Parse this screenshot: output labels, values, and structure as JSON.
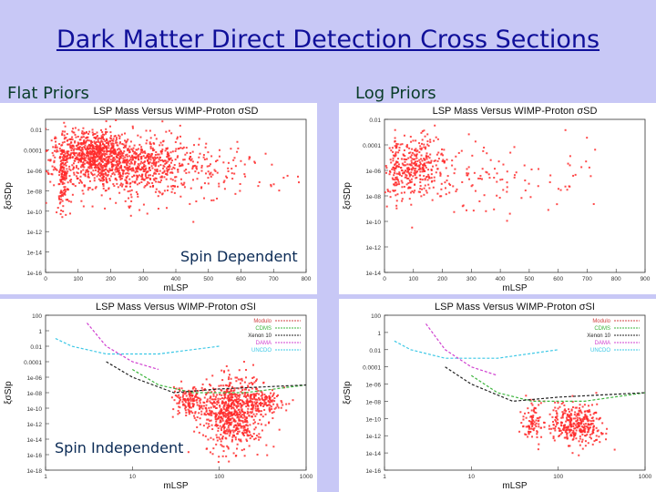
{
  "slide": {
    "title": "Dark Matter Direct Detection Cross Sections",
    "left_label": "Flat Priors",
    "right_label": "Log Priors",
    "sd_label": "Spin Dependent",
    "si_label": "Spin Independent"
  },
  "colors": {
    "points": "#ff2a2a",
    "title": "#10109a",
    "background": "#c8c8f6"
  },
  "chart_data": [
    {
      "id": "sd-flat",
      "type": "scatter",
      "title": "LSP Mass Versus WIMP-Proton σSD",
      "xlabel": "mLSP",
      "ylabel": "ξσSDp",
      "xscale": "linear",
      "yscale": "log",
      "xlim": [
        0,
        800
      ],
      "ylim": [
        1e-16,
        0.1
      ],
      "xticks": [
        "0",
        "100",
        "200",
        "300",
        "400",
        "500",
        "600",
        "700",
        "800"
      ],
      "yticks": [
        "1e-16",
        "1e-14",
        "1e-12",
        "1e-10",
        "1e-08",
        "1e-06",
        "0.0001",
        "0.01"
      ],
      "series": [
        {
          "color": "#ff2a2a",
          "clusters": [
            {
              "xc": 210,
              "xs": 110,
              "ylc": -5.2,
              "yls": 1.4,
              "n": 900
            },
            {
              "xc": 140,
              "xs": 50,
              "ylc": -4.0,
              "yls": 0.9,
              "n": 350
            },
            {
              "xc": 55,
              "xs": 8,
              "ylc": -6.5,
              "yls": 1.8,
              "n": 120
            },
            {
              "xc": 350,
              "xs": 160,
              "ylc": -6.0,
              "yls": 1.6,
              "n": 300
            }
          ]
        }
      ],
      "grid": false
    },
    {
      "id": "sd-log",
      "type": "scatter",
      "title": "LSP Mass Versus WIMP-Proton σSD",
      "xlabel": "mLSP",
      "ylabel": "ξσSDp",
      "xscale": "linear",
      "yscale": "log",
      "xlim": [
        0,
        900
      ],
      "ylim": [
        1e-14,
        0.01
      ],
      "xticks": [
        "0",
        "100",
        "200",
        "300",
        "400",
        "500",
        "600",
        "700",
        "800",
        "900"
      ],
      "yticks": [
        "1e-14",
        "1e-12",
        "1e-10",
        "1e-08",
        "1e-06",
        "0.0001",
        "0.01"
      ],
      "series": [
        {
          "color": "#ff2a2a",
          "clusters": [
            {
              "xc": 110,
              "xs": 50,
              "ylc": -5.8,
              "yls": 1.0,
              "n": 280
            },
            {
              "xc": 40,
              "xs": 8,
              "ylc": -5.5,
              "yls": 1.2,
              "n": 60
            },
            {
              "xc": 300,
              "xs": 200,
              "ylc": -6.5,
              "yls": 1.5,
              "n": 160
            }
          ]
        }
      ],
      "grid": false
    },
    {
      "id": "si-flat",
      "type": "scatter",
      "title": "LSP Mass Versus WIMP-Proton σSI",
      "xlabel": "mLSP",
      "ylabel": "ξσSIp",
      "xscale": "log",
      "yscale": "log",
      "xlim": [
        1,
        1000
      ],
      "ylim": [
        1e-18,
        100
      ],
      "xticks": [
        "1",
        "10",
        "100",
        "1000"
      ],
      "yticks": [
        "1e-18",
        "1e-16",
        "1e-14",
        "1e-12",
        "1e-10",
        "1e-08",
        "1e-06",
        "0.0001",
        "0.01",
        "1",
        "100"
      ],
      "legend": [
        "Modulo",
        "CDMS",
        "Xenon 10",
        "DAMA",
        "UNCDO"
      ],
      "legend_position": "top-right",
      "series": [
        {
          "color": "#ff2a2a",
          "clusters": [
            {
              "lxc": 2.15,
              "lxs": 0.18,
              "ylc": -10.5,
              "yls": 2.3,
              "n": 700
            },
            {
              "lxc": 1.65,
              "lxs": 0.09,
              "ylc": -9.0,
              "yls": 0.9,
              "n": 150
            },
            {
              "lxc": 2.5,
              "lxs": 0.12,
              "ylc": -9.2,
              "yls": 0.7,
              "n": 140
            }
          ]
        }
      ],
      "limit_curves": [
        {
          "name": "cyan",
          "color": "#3cc8e6",
          "points": [
            [
              1.3,
              0.1
            ],
            [
              2,
              0.01
            ],
            [
              5,
              0.001
            ],
            [
              20,
              0.001
            ],
            [
              100,
              0.01
            ]
          ]
        },
        {
          "name": "magenta",
          "color": "#d040d0",
          "points": [
            [
              3,
              10
            ],
            [
              5,
              0.01
            ],
            [
              10,
              0.0001
            ],
            [
              20,
              1e-05
            ]
          ]
        },
        {
          "name": "green",
          "color": "#3cb43c",
          "points": [
            [
              10,
              1e-05
            ],
            [
              20,
              1e-07
            ],
            [
              50,
              1e-08
            ],
            [
              200,
              1e-08
            ],
            [
              1000,
              1e-07
            ]
          ]
        },
        {
          "name": "black",
          "color": "#222222",
          "points": [
            [
              5,
              0.0001
            ],
            [
              10,
              1e-06
            ],
            [
              30,
              1e-08
            ],
            [
              100,
              3e-08
            ],
            [
              1000,
              1e-07
            ]
          ]
        }
      ],
      "grid": false
    },
    {
      "id": "si-log",
      "type": "scatter",
      "title": "LSP Mass Versus WIMP-Proton σSI",
      "xlabel": "mLSP",
      "ylabel": "ξσSIp",
      "xscale": "log",
      "yscale": "log",
      "xlim": [
        1,
        1000
      ],
      "ylim": [
        1e-16,
        100
      ],
      "xticks": [
        "1",
        "10",
        "100",
        "1000"
      ],
      "yticks": [
        "1e-16",
        "1e-14",
        "1e-12",
        "1e-10",
        "1e-08",
        "1e-06",
        "0.0001",
        "0.01",
        "1",
        "100"
      ],
      "legend": [
        "Modulo",
        "CDMS",
        "Xenon 10",
        "DAMA",
        "UNCDO"
      ],
      "legend_position": "top-right",
      "series": [
        {
          "color": "#ff2a2a",
          "clusters": [
            {
              "lxc": 2.2,
              "lxs": 0.15,
              "ylc": -10.7,
              "yls": 1.2,
              "n": 350
            },
            {
              "lxc": 1.7,
              "lxs": 0.06,
              "ylc": -10.5,
              "yls": 1.2,
              "n": 90
            }
          ]
        }
      ],
      "limit_curves": [
        {
          "name": "cyan",
          "color": "#3cc8e6",
          "points": [
            [
              1.3,
              0.1
            ],
            [
              2,
              0.01
            ],
            [
              5,
              0.001
            ],
            [
              20,
              0.001
            ],
            [
              100,
              0.01
            ]
          ]
        },
        {
          "name": "magenta",
          "color": "#d040d0",
          "points": [
            [
              3,
              10
            ],
            [
              5,
              0.01
            ],
            [
              10,
              0.0001
            ],
            [
              20,
              1e-05
            ]
          ]
        },
        {
          "name": "green",
          "color": "#3cb43c",
          "points": [
            [
              10,
              1e-05
            ],
            [
              20,
              1e-07
            ],
            [
              50,
              1e-08
            ],
            [
              200,
              1e-08
            ],
            [
              1000,
              1e-07
            ]
          ]
        },
        {
          "name": "black",
          "color": "#222222",
          "points": [
            [
              5,
              0.0001
            ],
            [
              10,
              1e-06
            ],
            [
              30,
              1e-08
            ],
            [
              100,
              3e-08
            ],
            [
              1000,
              1e-07
            ]
          ]
        }
      ],
      "grid": false
    }
  ]
}
